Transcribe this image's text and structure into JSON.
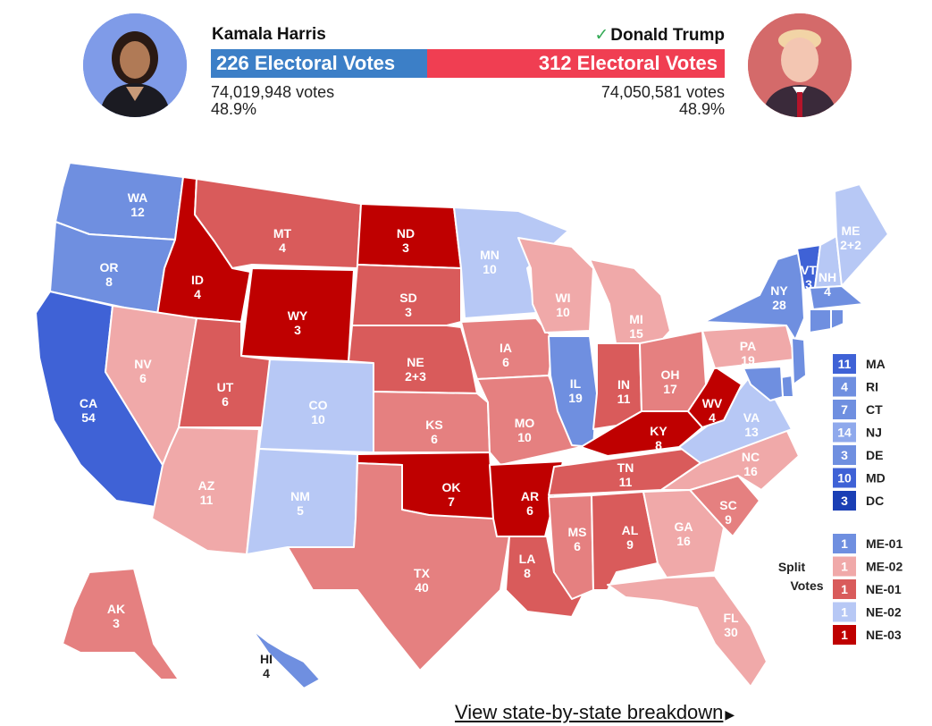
{
  "colors": {
    "dem_strong": "#3f62d6",
    "dem_likely": "#6f8fe0",
    "dem_lean": "#b7c8f5",
    "rep_strong": "#bf0000",
    "rep_likely": "#d95b5b",
    "rep_lean": "#f0a9a9",
    "rep_mid": "#e58080",
    "dc_blue": "#1a3fb5"
  },
  "header": {
    "left": {
      "name": "Kamala Harris",
      "electoral": "226 Electoral Votes",
      "votes": "74,019,948 votes",
      "percent": "48.9%",
      "avatar": "harris-portrait"
    },
    "right": {
      "winner_mark": "✓",
      "name": "Donald Trump",
      "electoral": "312 Electoral Votes",
      "votes": "74,050,581 votes",
      "percent": "48.9%",
      "avatar": "trump-portrait"
    }
  },
  "states": [
    {
      "abbr": "WA",
      "ev": "12",
      "party": "dem_likely"
    },
    {
      "abbr": "OR",
      "ev": "8",
      "party": "dem_likely"
    },
    {
      "abbr": "CA",
      "ev": "54",
      "party": "dem_strong"
    },
    {
      "abbr": "ID",
      "ev": "4",
      "party": "rep_strong"
    },
    {
      "abbr": "NV",
      "ev": "6",
      "party": "rep_lean"
    },
    {
      "abbr": "MT",
      "ev": "4",
      "party": "rep_likely"
    },
    {
      "abbr": "WY",
      "ev": "3",
      "party": "rep_strong"
    },
    {
      "abbr": "UT",
      "ev": "6",
      "party": "rep_likely"
    },
    {
      "abbr": "AZ",
      "ev": "11",
      "party": "rep_lean"
    },
    {
      "abbr": "CO",
      "ev": "10",
      "party": "dem_lean"
    },
    {
      "abbr": "NM",
      "ev": "5",
      "party": "dem_lean"
    },
    {
      "abbr": "ND",
      "ev": "3",
      "party": "rep_strong"
    },
    {
      "abbr": "SD",
      "ev": "3",
      "party": "rep_likely"
    },
    {
      "abbr": "NE",
      "ev": "2+3",
      "party": "rep_likely"
    },
    {
      "abbr": "KS",
      "ev": "6",
      "party": "rep_mid"
    },
    {
      "abbr": "OK",
      "ev": "7",
      "party": "rep_strong"
    },
    {
      "abbr": "TX",
      "ev": "40",
      "party": "rep_mid"
    },
    {
      "abbr": "MN",
      "ev": "10",
      "party": "dem_lean"
    },
    {
      "abbr": "IA",
      "ev": "6",
      "party": "rep_mid"
    },
    {
      "abbr": "MO",
      "ev": "10",
      "party": "rep_mid"
    },
    {
      "abbr": "AR",
      "ev": "6",
      "party": "rep_strong"
    },
    {
      "abbr": "LA",
      "ev": "8",
      "party": "rep_likely"
    },
    {
      "abbr": "WI",
      "ev": "10",
      "party": "rep_lean"
    },
    {
      "abbr": "IL",
      "ev": "19",
      "party": "dem_likely"
    },
    {
      "abbr": "MI",
      "ev": "15",
      "party": "rep_lean"
    },
    {
      "abbr": "IN",
      "ev": "11",
      "party": "rep_likely"
    },
    {
      "abbr": "OH",
      "ev": "17",
      "party": "rep_mid"
    },
    {
      "abbr": "KY",
      "ev": "8",
      "party": "rep_strong"
    },
    {
      "abbr": "TN",
      "ev": "11",
      "party": "rep_likely"
    },
    {
      "abbr": "MS",
      "ev": "6",
      "party": "rep_mid"
    },
    {
      "abbr": "AL",
      "ev": "9",
      "party": "rep_likely"
    },
    {
      "abbr": "GA",
      "ev": "16",
      "party": "rep_lean"
    },
    {
      "abbr": "FL",
      "ev": "30",
      "party": "rep_lean"
    },
    {
      "abbr": "SC",
      "ev": "9",
      "party": "rep_mid"
    },
    {
      "abbr": "NC",
      "ev": "16",
      "party": "rep_lean"
    },
    {
      "abbr": "VA",
      "ev": "13",
      "party": "dem_lean"
    },
    {
      "abbr": "WV",
      "ev": "4",
      "party": "rep_strong"
    },
    {
      "abbr": "PA",
      "ev": "19",
      "party": "rep_lean"
    },
    {
      "abbr": "NY",
      "ev": "28",
      "party": "dem_likely"
    },
    {
      "abbr": "VT",
      "ev": "3",
      "party": "dem_strong"
    },
    {
      "abbr": "NH",
      "ev": "4",
      "party": "dem_lean"
    },
    {
      "abbr": "ME",
      "ev": "2+2",
      "party": "dem_lean"
    },
    {
      "abbr": "AK",
      "ev": "3",
      "party": "rep_mid"
    },
    {
      "abbr": "HI",
      "ev": "4",
      "party": "dem_likely"
    }
  ],
  "small_states": [
    {
      "ev": "11",
      "abbr": "MA",
      "color": "#3f62d6"
    },
    {
      "ev": "4",
      "abbr": "RI",
      "color": "#6f8fe0"
    },
    {
      "ev": "7",
      "abbr": "CT",
      "color": "#6f8fe0"
    },
    {
      "ev": "14",
      "abbr": "NJ",
      "color": "#8fa9ec"
    },
    {
      "ev": "3",
      "abbr": "DE",
      "color": "#6f8fe0"
    },
    {
      "ev": "10",
      "abbr": "MD",
      "color": "#3f62d6"
    },
    {
      "ev": "3",
      "abbr": "DC",
      "color": "#1a3fb5"
    }
  ],
  "split_votes": {
    "label_line1": "Split",
    "label_line2": "Votes",
    "items": [
      {
        "ev": "1",
        "abbr": "ME-01",
        "color": "#6f8fe0"
      },
      {
        "ev": "1",
        "abbr": "ME-02",
        "color": "#f0a9a9"
      },
      {
        "ev": "1",
        "abbr": "NE-01",
        "color": "#d95b5b"
      },
      {
        "ev": "1",
        "abbr": "NE-02",
        "color": "#b7c8f5"
      },
      {
        "ev": "1",
        "abbr": "NE-03",
        "color": "#bf0000"
      }
    ]
  },
  "footer": {
    "link_text": "View state-by-state breakdown",
    "arrow": "▶"
  }
}
